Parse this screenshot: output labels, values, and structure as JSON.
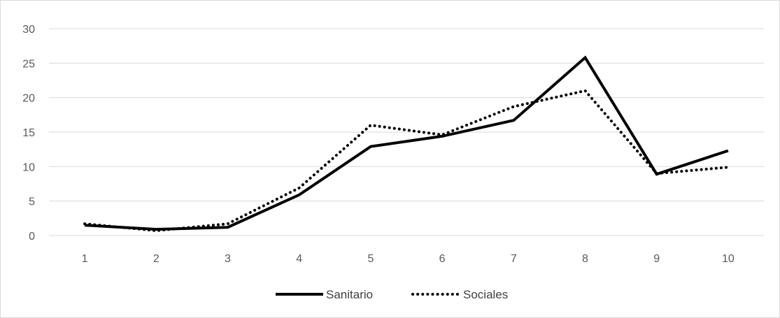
{
  "chart_data": {
    "type": "line",
    "title": "",
    "xlabel": "",
    "ylabel": "",
    "x": [
      1,
      2,
      3,
      4,
      5,
      6,
      7,
      8,
      9,
      10
    ],
    "ylim": [
      0,
      30
    ],
    "yticks": [
      0,
      5,
      10,
      15,
      20,
      25,
      30
    ],
    "grid": "horizontal",
    "legend_position": "bottom",
    "series": [
      {
        "name": "Sanitario",
        "style": "solid",
        "color": "#000000",
        "values": [
          1.5,
          0.9,
          1.2,
          5.9,
          12.9,
          14.4,
          16.7,
          25.8,
          8.9,
          12.3
        ]
      },
      {
        "name": "Sociales",
        "style": "dotted",
        "color": "#000000",
        "values": [
          1.7,
          0.7,
          1.7,
          6.9,
          16.0,
          14.6,
          18.7,
          21.0,
          9.0,
          9.9
        ]
      }
    ]
  }
}
